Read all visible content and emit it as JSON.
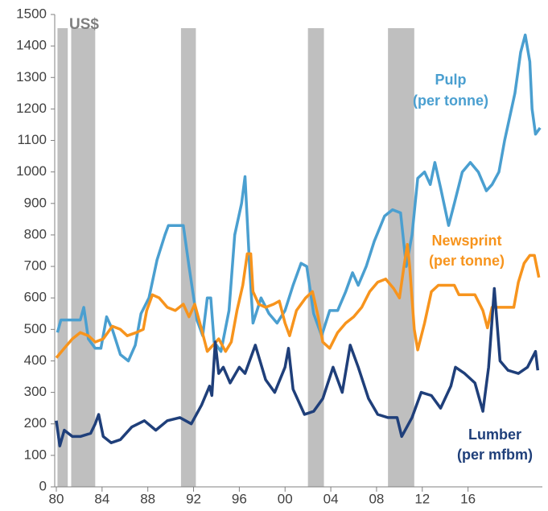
{
  "chart_data": {
    "type": "line",
    "y_label": "US$",
    "xlim": [
      1980,
      2022.5
    ],
    "ylim": [
      0,
      1500
    ],
    "xticks": [
      {
        "value": 1980,
        "label": "80"
      },
      {
        "value": 1984,
        "label": "84"
      },
      {
        "value": 1988,
        "label": "88"
      },
      {
        "value": 1992,
        "label": "92"
      },
      {
        "value": 1996,
        "label": "96"
      },
      {
        "value": 2000,
        "label": "00"
      },
      {
        "value": 2004,
        "label": "04"
      },
      {
        "value": 2008,
        "label": "08"
      },
      {
        "value": 2012,
        "label": "12"
      },
      {
        "value": 2016,
        "label": "16"
      }
    ],
    "yticks": [
      0,
      100,
      200,
      300,
      400,
      500,
      600,
      700,
      800,
      900,
      1000,
      1100,
      1200,
      1300,
      1400,
      1500
    ],
    "shaded_periods": [
      [
        1980.1,
        1981.0
      ],
      [
        1981.3,
        1983.4
      ],
      [
        1990.9,
        1992.2
      ],
      [
        2002.0,
        2003.4
      ],
      [
        2009.0,
        2011.3
      ]
    ],
    "shade_color": "#bfbfbf",
    "series": [
      {
        "name": "Pulp",
        "unit_label": "(per tonne)",
        "color": "#4a9fd0",
        "x": [
          1980.1,
          1980.4,
          1982.1,
          1982.4,
          1982.8,
          1983.4,
          1983.9,
          1984.4,
          1984.9,
          1985.6,
          1986.3,
          1986.9,
          1987.4,
          1988.1,
          1988.8,
          1989.5,
          1989.8,
          1991.1,
          1991.6,
          1992.3,
          1992.8,
          1993.2,
          1993.5,
          1993.8,
          1994.4,
          1995.1,
          1995.6,
          1996.2,
          1996.5,
          1996.9,
          1997.2,
          1997.9,
          1998.6,
          1999.3,
          2000.0,
          2000.7,
          2001.4,
          2001.9,
          2002.5,
          2003.2,
          2003.9,
          2004.6,
          2005.3,
          2005.9,
          2006.4,
          2007.1,
          2007.8,
          2008.7,
          2009.4,
          2010.1,
          2010.6,
          2011.1,
          2011.6,
          2012.2,
          2012.7,
          2013.1,
          2013.6,
          2014.3,
          2014.8,
          2015.5,
          2016.2,
          2016.9,
          2017.6,
          2018.1,
          2018.7,
          2019.2,
          2020.1,
          2020.6,
          2021.0,
          2021.4,
          2021.6,
          2021.9,
          2022.3
        ],
        "values": [
          490,
          530,
          530,
          570,
          470,
          440,
          440,
          540,
          500,
          420,
          400,
          450,
          550,
          600,
          720,
          800,
          830,
          830,
          700,
          530,
          480,
          600,
          600,
          460,
          430,
          560,
          800,
          900,
          985,
          700,
          520,
          600,
          550,
          520,
          560,
          640,
          710,
          700,
          550,
          480,
          560,
          560,
          620,
          680,
          640,
          700,
          780,
          860,
          880,
          870,
          700,
          800,
          980,
          1000,
          960,
          1030,
          950,
          830,
          900,
          1000,
          1030,
          1000,
          940,
          960,
          1000,
          1100,
          1250,
          1380,
          1435,
          1350,
          1200,
          1120,
          1140
        ]
      },
      {
        "name": "Newsprint",
        "unit_label": "(per tonne)",
        "color": "#f7941d",
        "x": [
          1980.0,
          1980.7,
          1981.4,
          1982.1,
          1982.8,
          1983.4,
          1984.1,
          1984.9,
          1985.6,
          1986.2,
          1987.0,
          1987.6,
          1987.9,
          1988.4,
          1989.0,
          1989.7,
          1990.4,
          1991.1,
          1991.6,
          1992.1,
          1992.7,
          1993.2,
          1993.7,
          1994.2,
          1994.8,
          1995.3,
          1995.8,
          1996.3,
          1996.7,
          1997.0,
          1997.2,
          1997.7,
          1998.3,
          1999.0,
          1999.5,
          2000.0,
          2000.4,
          2001.0,
          2001.8,
          2002.4,
          2002.9,
          2003.3,
          2003.9,
          2004.6,
          2005.3,
          2006.0,
          2006.7,
          2007.4,
          2008.1,
          2008.8,
          2009.5,
          2010.0,
          2010.4,
          2010.7,
          2010.9,
          2011.3,
          2011.6,
          2012.2,
          2012.8,
          2013.4,
          2014.8,
          2015.2,
          2016.6,
          2017.3,
          2017.7,
          2018.1,
          2020.0,
          2020.4,
          2020.9,
          2021.4,
          2021.8,
          2022.0,
          2022.2
        ],
        "values": [
          410,
          440,
          470,
          490,
          480,
          460,
          470,
          510,
          500,
          480,
          490,
          500,
          560,
          610,
          600,
          570,
          560,
          580,
          540,
          580,
          500,
          430,
          450,
          470,
          430,
          460,
          560,
          640,
          740,
          740,
          620,
          580,
          570,
          580,
          590,
          520,
          480,
          560,
          600,
          620,
          540,
          460,
          440,
          490,
          520,
          540,
          570,
          620,
          650,
          660,
          630,
          600,
          700,
          770,
          700,
          500,
          435,
          520,
          620,
          640,
          640,
          610,
          610,
          560,
          505,
          570,
          570,
          650,
          710,
          735,
          735,
          700,
          665
        ]
      },
      {
        "name": "Lumber",
        "unit_label": "(per mfbm)",
        "color": "#1f3f7a",
        "x": [
          1980.0,
          1980.3,
          1980.7,
          1981.4,
          1982.1,
          1983.0,
          1983.4,
          1983.7,
          1984.1,
          1984.8,
          1985.6,
          1986.6,
          1987.7,
          1988.7,
          1989.7,
          1990.8,
          1991.8,
          1992.7,
          1993.4,
          1993.6,
          1993.9,
          1994.2,
          1994.6,
          1995.2,
          1996.0,
          1996.5,
          1997.4,
          1998.3,
          1999.1,
          2000.0,
          2000.3,
          2000.7,
          2001.7,
          2002.5,
          2003.3,
          2004.2,
          2005.0,
          2005.7,
          2006.4,
          2007.3,
          2008.1,
          2009.0,
          2009.8,
          2010.2,
          2011.1,
          2011.9,
          2012.8,
          2013.6,
          2014.5,
          2014.9,
          2015.7,
          2016.6,
          2017.3,
          2017.8,
          2018.3,
          2018.8,
          2019.5,
          2020.4,
          2021.2,
          2021.9,
          2022.1
        ],
        "values": [
          210,
          130,
          180,
          160,
          160,
          170,
          200,
          230,
          160,
          140,
          150,
          190,
          210,
          180,
          210,
          220,
          200,
          260,
          320,
          290,
          460,
          360,
          380,
          330,
          380,
          360,
          450,
          340,
          300,
          380,
          440,
          310,
          230,
          240,
          280,
          380,
          300,
          450,
          380,
          280,
          230,
          220,
          220,
          160,
          220,
          300,
          290,
          250,
          320,
          380,
          360,
          330,
          240,
          380,
          630,
          400,
          370,
          360,
          380,
          430,
          370
        ]
      }
    ]
  }
}
